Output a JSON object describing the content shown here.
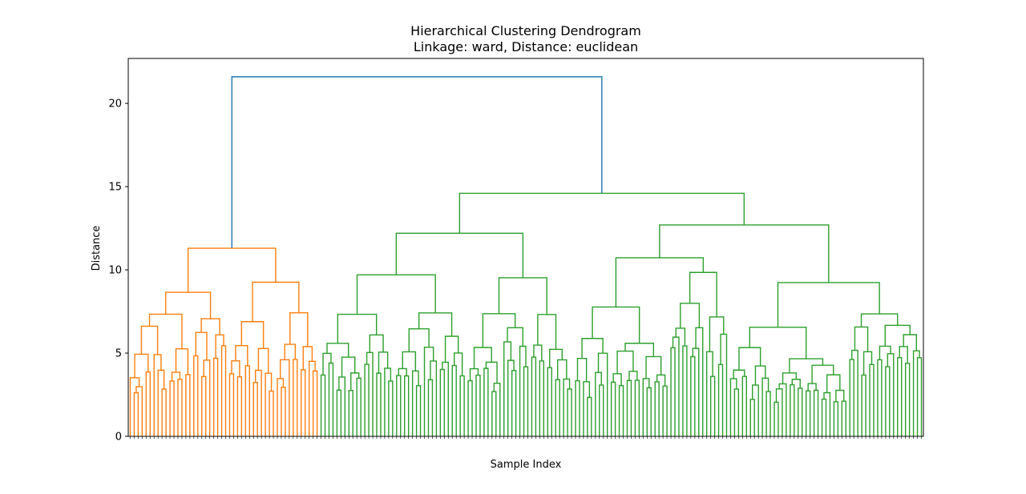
{
  "chart_data": {
    "type": "dendrogram",
    "title": "Hierarchical Clustering Dendrogram",
    "subtitle": "Linkage: ward, Distance: euclidean",
    "xlabel": "Sample Index",
    "ylabel": "Distance",
    "ylim": [
      0,
      22.7
    ],
    "yticks": [
      0,
      5,
      10,
      15,
      20
    ],
    "grid": false,
    "leaf_count": 200,
    "root_height": 21.6,
    "colors": {
      "above_threshold": "#1f77b4",
      "cluster_1": "#ff7f0e",
      "cluster_2": "#2ca02c"
    },
    "merges": [
      {
        "height": 21.6,
        "children": [
          "cluster_1",
          "cluster_2"
        ]
      },
      {
        "height": 11.3,
        "cluster": "cluster_1"
      },
      {
        "height": 14.6,
        "cluster": "cluster_2"
      },
      {
        "height": 12.2,
        "cluster": "cluster_2",
        "group": "left"
      },
      {
        "height": 12.7,
        "cluster": "cluster_2",
        "group": "right"
      }
    ]
  }
}
